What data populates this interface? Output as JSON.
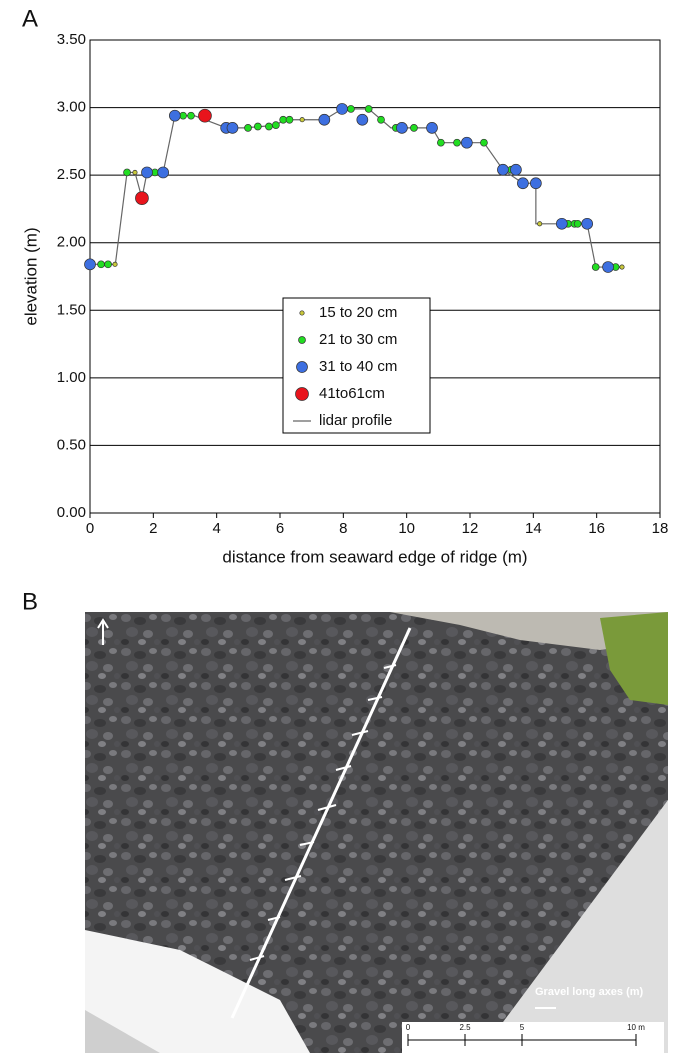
{
  "chart_data": {
    "type": "scatter",
    "panel_label": "A",
    "x_label": "distance from seaward edge of ridge (m)",
    "y_label": "elevation (m)",
    "xlim": [
      0,
      18
    ],
    "xticks": [
      0,
      2,
      4,
      6,
      8,
      10,
      12,
      14,
      16,
      18
    ],
    "ylim": [
      0,
      3.5
    ],
    "yticks": [
      {
        "value": 0,
        "label": "0.00"
      },
      {
        "value": 0.5,
        "label": "0.50"
      },
      {
        "value": 1,
        "label": "1.00"
      },
      {
        "value": 1.5,
        "label": "1.50"
      },
      {
        "value": 2,
        "label": "2.00"
      },
      {
        "value": 2.5,
        "label": "2.50"
      },
      {
        "value": 3,
        "label": "3.00"
      },
      {
        "value": 3.5,
        "label": "3.50"
      }
    ],
    "grid": true,
    "series": [
      {
        "name": "15 to 20 cm",
        "color": "#c9c83a",
        "x": [
          0.79,
          1.42,
          6.7,
          14.2,
          16.8
        ],
        "values": [
          1.84,
          2.52,
          2.91,
          2.14,
          1.82
        ]
      },
      {
        "name": "21 to 30 cm",
        "color": "#22dd22",
        "x": [
          0.35,
          0.57,
          1.17,
          2.05,
          2.94,
          3.19,
          4.99,
          5.3,
          5.65,
          5.87,
          6.1,
          6.3,
          8.24,
          8.8,
          9.19,
          9.66,
          10.23,
          11.08,
          11.59,
          12.44,
          13.3,
          15.1,
          15.3,
          15.4,
          15.97,
          16.6
        ],
        "values": [
          1.84,
          1.84,
          2.52,
          2.52,
          2.94,
          2.94,
          2.85,
          2.86,
          2.86,
          2.87,
          2.91,
          2.91,
          2.99,
          2.99,
          2.91,
          2.85,
          2.85,
          2.74,
          2.74,
          2.74,
          2.54,
          2.14,
          2.14,
          2.14,
          1.82,
          1.82
        ]
      },
      {
        "name": "31 to 40 cm",
        "color": "#3d6fe0",
        "x": [
          0,
          1.8,
          2.31,
          2.68,
          4.3,
          4.5,
          7.4,
          7.96,
          8.6,
          9.85,
          10.8,
          11.9,
          13.04,
          13.45,
          13.67,
          14.08,
          14.9,
          15.7,
          16.36
        ],
        "values": [
          1.84,
          2.52,
          2.52,
          2.94,
          2.85,
          2.85,
          2.91,
          2.99,
          2.91,
          2.85,
          2.85,
          2.74,
          2.54,
          2.54,
          2.44,
          2.44,
          2.14,
          2.14,
          1.82
        ]
      },
      {
        "name": "41to61cm",
        "color": "#e8141c",
        "x": [
          1.64,
          3.63
        ],
        "values": [
          2.33,
          2.94
        ]
      },
      {
        "name": "lidar profile",
        "color": "#666666",
        "type": "line",
        "x": [
          0,
          0.8,
          1.17,
          1.42,
          1.64,
          1.8,
          2.31,
          2.68,
          3.3,
          4.3,
          4.9,
          5.9,
          6.1,
          7.4,
          7.96,
          8.24,
          8.8,
          9.5,
          10.8,
          11.08,
          12.44,
          13.04,
          13.67,
          14.08,
          14.08,
          15.7,
          15.97,
          16.8
        ],
        "values": [
          1.84,
          1.84,
          2.52,
          2.52,
          2.33,
          2.52,
          2.52,
          2.94,
          2.94,
          2.85,
          2.85,
          2.87,
          2.91,
          2.91,
          2.99,
          2.99,
          2.99,
          2.85,
          2.85,
          2.74,
          2.74,
          2.54,
          2.44,
          2.44,
          2.14,
          2.14,
          1.82,
          1.82
        ]
      }
    ]
  },
  "photo": {
    "panel_label": "B",
    "legend_title": "Gravel long axes (m)",
    "scale_labels": [
      "0",
      "2.5",
      "5",
      "10 m"
    ]
  }
}
